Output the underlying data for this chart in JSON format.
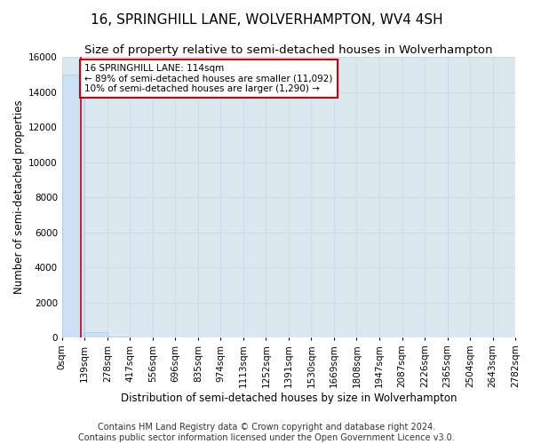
{
  "title": "16, SPRINGHILL LANE, WOLVERHAMPTON, WV4 4SH",
  "subtitle": "Size of property relative to semi-detached houses in Wolverhampton",
  "xlabel": "Distribution of semi-detached houses by size in Wolverhampton",
  "ylabel": "Number of semi-detached properties",
  "footnote1": "Contains HM Land Registry data © Crown copyright and database right 2024.",
  "footnote2": "Contains public sector information licensed under the Open Government Licence v3.0.",
  "bin_edges": [
    0,
    139,
    278,
    417,
    556,
    696,
    835,
    974,
    1113,
    1252,
    1391,
    1530,
    1669,
    1808,
    1947,
    2087,
    2226,
    2365,
    2504,
    2643,
    2782
  ],
  "bin_labels": [
    "0sqm",
    "139sqm",
    "278sqm",
    "417sqm",
    "556sqm",
    "696sqm",
    "835sqm",
    "974sqm",
    "1113sqm",
    "1252sqm",
    "1391sqm",
    "1530sqm",
    "1669sqm",
    "1808sqm",
    "1947sqm",
    "2087sqm",
    "2226sqm",
    "2365sqm",
    "2504sqm",
    "2643sqm",
    "2782sqm"
  ],
  "bar_heights": [
    15000,
    310,
    30,
    10,
    5,
    2,
    1,
    1,
    0,
    0,
    0,
    0,
    0,
    0,
    0,
    0,
    0,
    0,
    0,
    0
  ],
  "bar_color": "#cce0f5",
  "bar_edgecolor": "#aac8e8",
  "property_size": 114,
  "property_line_color": "#cc0000",
  "annotation_line1": "16 SPRINGHILL LANE: 114sqm",
  "annotation_line2": "← 89% of semi-detached houses are smaller (11,092)",
  "annotation_line3": "10% of semi-detached houses are larger (1,290) →",
  "annotation_box_edgecolor": "#cc0000",
  "annotation_box_facecolor": "#ffffff",
  "ylim": [
    0,
    16000
  ],
  "yticks": [
    0,
    2000,
    4000,
    6000,
    8000,
    10000,
    12000,
    14000,
    16000
  ],
  "grid_color": "#c8d8e8",
  "background_color": "#dce8f0",
  "title_fontsize": 11,
  "subtitle_fontsize": 9.5,
  "axis_label_fontsize": 8.5,
  "tick_fontsize": 7.5,
  "annotation_fontsize": 7.5,
  "footnote_fontsize": 7
}
